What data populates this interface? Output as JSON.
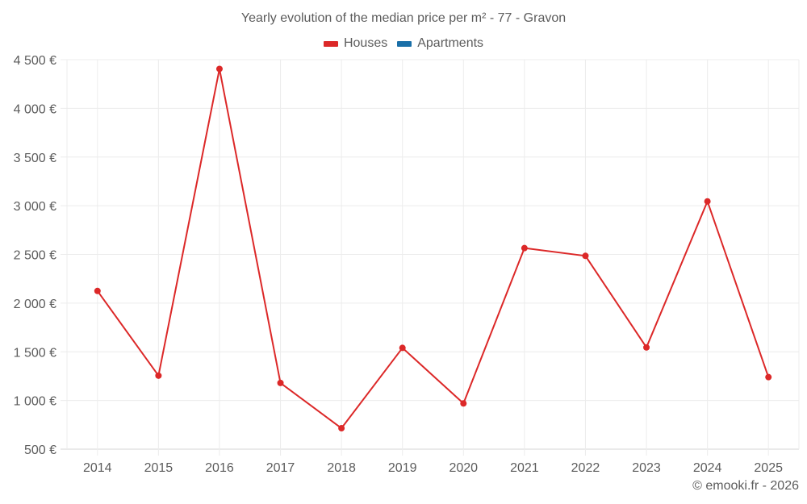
{
  "chart_data": {
    "type": "line",
    "title": "Yearly evolution of the median price per m² - 77 - Gravon",
    "xlabel": "",
    "ylabel": "",
    "categories": [
      "2014",
      "2015",
      "2016",
      "2017",
      "2018",
      "2019",
      "2020",
      "2021",
      "2022",
      "2023",
      "2024",
      "2025"
    ],
    "series": [
      {
        "name": "Houses",
        "color": "#dc2828",
        "values": [
          2125,
          1255,
          4405,
          1180,
          715,
          1540,
          970,
          2565,
          2485,
          1545,
          3045,
          1240
        ]
      },
      {
        "name": "Apartments",
        "color": "#1a6fa8",
        "values": []
      }
    ],
    "ylim": [
      500,
      4500
    ],
    "yticks": [
      500,
      1000,
      1500,
      2000,
      2500,
      3000,
      3500,
      4000,
      4500
    ],
    "ytick_labels": [
      "500 €",
      "1 000 €",
      "1 500 €",
      "2 000 €",
      "2 500 €",
      "3 000 €",
      "3 500 €",
      "4 000 €",
      "4 500 €"
    ],
    "grid": true,
    "legend_position": "top"
  },
  "legend": {
    "houses_label": "Houses",
    "apartments_label": "Apartments"
  },
  "credit": "© emooki.fr - 2026"
}
